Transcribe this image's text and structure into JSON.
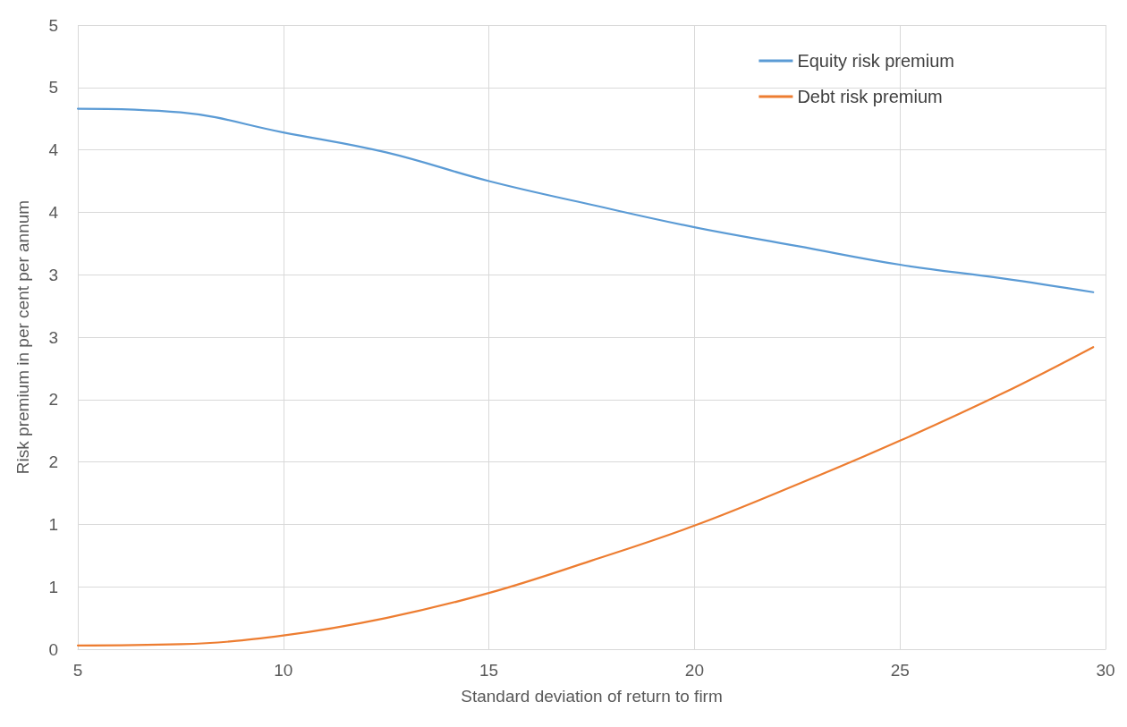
{
  "chart_data": {
    "type": "line",
    "xlabel": "Standard deviation of return to firm",
    "ylabel": "Risk premium in per cent per annum",
    "x": [
      5,
      7.5,
      10,
      12.5,
      15,
      17.5,
      20,
      22.5,
      25,
      27.5,
      29.7
    ],
    "series": [
      {
        "name": "Equity risk premium",
        "color": "#5b9bd5",
        "values": [
          4.33,
          4.3,
          4.14,
          3.98,
          3.75,
          3.56,
          3.38,
          3.23,
          3.08,
          2.97,
          2.86
        ]
      },
      {
        "name": "Debt risk premium",
        "color": "#ed7d31",
        "values": [
          0.03,
          0.04,
          0.11,
          0.25,
          0.45,
          0.71,
          0.99,
          1.32,
          1.67,
          2.05,
          2.42
        ]
      }
    ],
    "xlim": [
      5,
      30
    ],
    "xticks": [
      5,
      10,
      15,
      20,
      25,
      30
    ],
    "ylim": [
      0,
      5
    ],
    "yticks": [
      0,
      {
        "value": 0.5,
        "label": "1"
      },
      1,
      {
        "value": 1.5,
        "label": "2"
      },
      2,
      {
        "value": 2.5,
        "label": "3"
      },
      3,
      {
        "value": 3.5,
        "label": "4"
      },
      4,
      {
        "value": 4.5,
        "label": "5"
      },
      5
    ],
    "grid": true,
    "legend": "top right",
    "marker": "none",
    "line_style": "solid"
  }
}
